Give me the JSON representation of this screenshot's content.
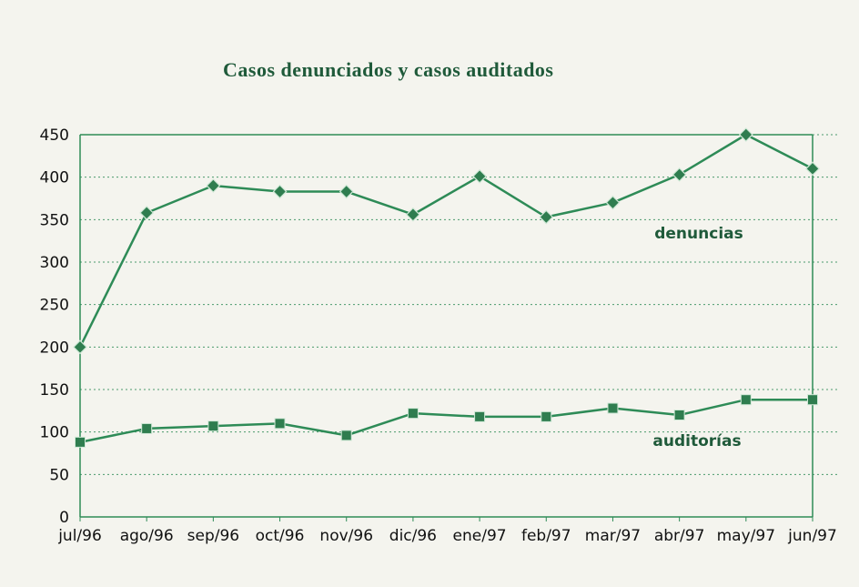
{
  "chart_data": {
    "type": "line",
    "title": "Casos denunciados y casos auditados",
    "categories": [
      "jul/96",
      "ago/96",
      "sep/96",
      "oct/96",
      "nov/96",
      "dic/96",
      "ene/97",
      "feb/97",
      "mar/97",
      "abr/97",
      "may/97",
      "jun/97"
    ],
    "y_ticks": [
      "0",
      "50",
      "100",
      "150",
      "200",
      "250",
      "300",
      "350",
      "400",
      "450"
    ],
    "ylim": [
      0,
      450
    ],
    "grid": "dashed horizontal",
    "series": [
      {
        "name": "denuncias",
        "values": [
          200,
          358,
          390,
          383,
          383,
          356,
          401,
          353,
          370,
          403,
          450,
          410
        ]
      },
      {
        "name": "auditorías",
        "values": [
          88,
          104,
          107,
          110,
          96,
          122,
          118,
          118,
          128,
          120,
          138,
          138
        ]
      }
    ],
    "colors": {
      "line": "#2e8b57",
      "marker": "#2f7d4f",
      "grid": "#2e8b57",
      "title": "#1f5a3a"
    }
  }
}
